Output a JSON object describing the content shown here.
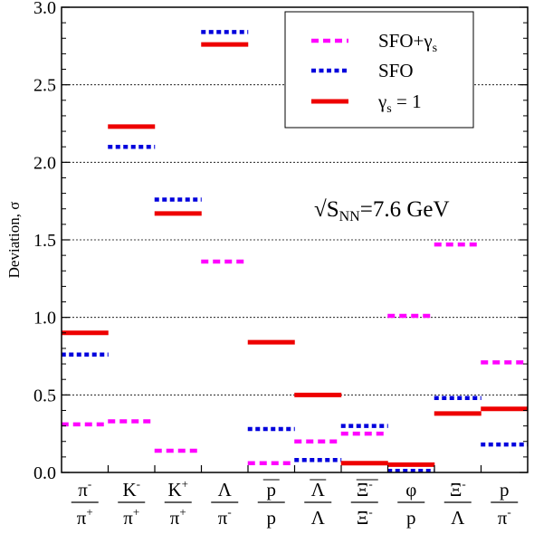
{
  "chart_data": {
    "type": "scatter",
    "ylabel": "Deviation, σ",
    "ylim": [
      0,
      3.0
    ],
    "yticks": [
      "0.0",
      "0.5",
      "1.0",
      "1.5",
      "2.0",
      "2.5",
      "3.0"
    ],
    "grid_y": [
      0.5,
      1.0,
      1.5,
      2.0,
      2.5
    ],
    "annotation": "√S_NN=7.6 GeV",
    "annotation_parts": {
      "root": "√S",
      "sub": "NN",
      "rest": "=7.6 GeV"
    },
    "legend_position": "top-right",
    "categories": [
      {
        "num": "π",
        "num_sup": "-",
        "den": "π",
        "den_sup": "+",
        "num_bar": false,
        "den_bar": false
      },
      {
        "num": "K",
        "num_sup": "-",
        "den": "π",
        "den_sup": "+",
        "num_bar": false,
        "den_bar": false
      },
      {
        "num": "K",
        "num_sup": "+",
        "den": "π",
        "den_sup": "+",
        "num_bar": false,
        "den_bar": false
      },
      {
        "num": "Λ",
        "num_sup": "",
        "den": "π",
        "den_sup": "-",
        "num_bar": false,
        "den_bar": false
      },
      {
        "num": "p",
        "num_sup": "",
        "den": "p",
        "den_sup": "",
        "num_bar": true,
        "den_bar": false
      },
      {
        "num": "Λ",
        "num_sup": "",
        "den": "Λ",
        "den_sup": "",
        "num_bar": true,
        "den_bar": false
      },
      {
        "num": "Ξ",
        "num_sup": "-",
        "den": "Ξ",
        "den_sup": "-",
        "num_bar": true,
        "den_bar": false
      },
      {
        "num": "φ",
        "num_sup": "",
        "den": "p",
        "den_sup": "",
        "num_bar": false,
        "den_bar": false
      },
      {
        "num": "Ξ",
        "num_sup": "-",
        "den": "Λ",
        "den_sup": "",
        "num_bar": false,
        "den_bar": false
      },
      {
        "num": "p",
        "num_sup": "",
        "den": "π",
        "den_sup": "-",
        "num_bar": false,
        "den_bar": false
      }
    ],
    "series": [
      {
        "name": "SFO+γs",
        "name_main": "SFO+γ",
        "name_sub": "s",
        "color": "#ff00ff",
        "style": "dashed",
        "values": [
          0.31,
          0.33,
          0.14,
          1.36,
          0.06,
          0.2,
          0.25,
          1.01,
          1.47,
          0.71
        ]
      },
      {
        "name": "SFO",
        "name_main": "SFO",
        "name_sub": "",
        "color": "#0000dd",
        "style": "dotted",
        "values": [
          0.76,
          2.1,
          1.76,
          2.84,
          0.28,
          0.08,
          0.3,
          0.01,
          0.48,
          0.18
        ]
      },
      {
        "name": "γs = 1",
        "name_main": "γ",
        "name_sub": "s",
        "name_rest": " = 1",
        "color": "#ee0000",
        "style": "solid",
        "values": [
          0.9,
          2.23,
          1.67,
          2.76,
          0.84,
          0.5,
          0.06,
          0.05,
          0.38,
          0.41
        ]
      }
    ]
  }
}
